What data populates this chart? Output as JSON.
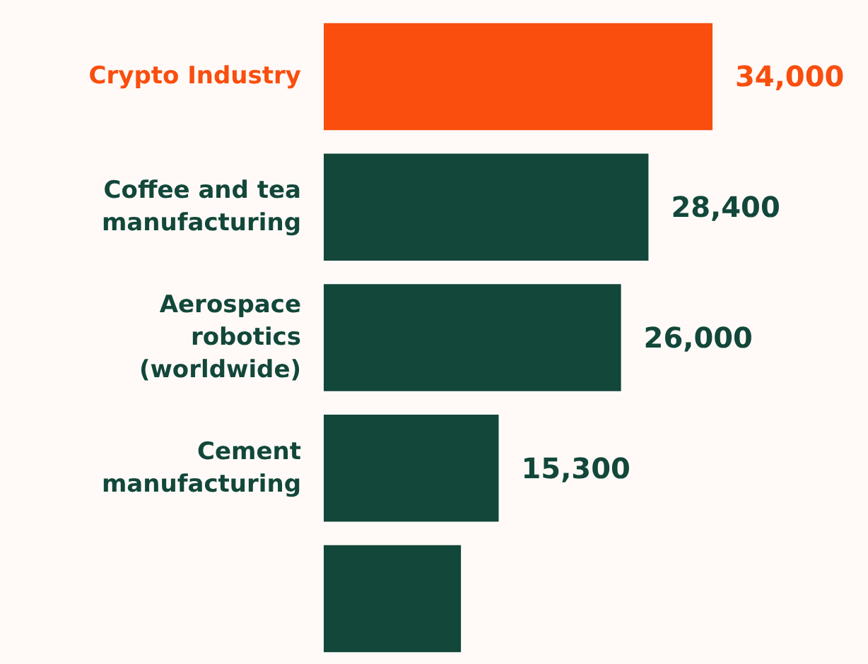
{
  "chart_data": {
    "type": "bar",
    "orientation": "horizontal",
    "categories": [
      "Crypto Industry",
      "Coffee and tea\nmanufacturing",
      "Aerospace\nrobotics\n(worldwide)",
      "Cement\nmanufacturing",
      null
    ],
    "values": [
      34000,
      28400,
      26000,
      15300,
      12000
    ],
    "value_labels": [
      "34,000",
      "28,400",
      "26,000",
      "15,300",
      null
    ],
    "colors": [
      "#f94e0e",
      "#12473a",
      "#12473a",
      "#12473a",
      "#12473a"
    ]
  }
}
